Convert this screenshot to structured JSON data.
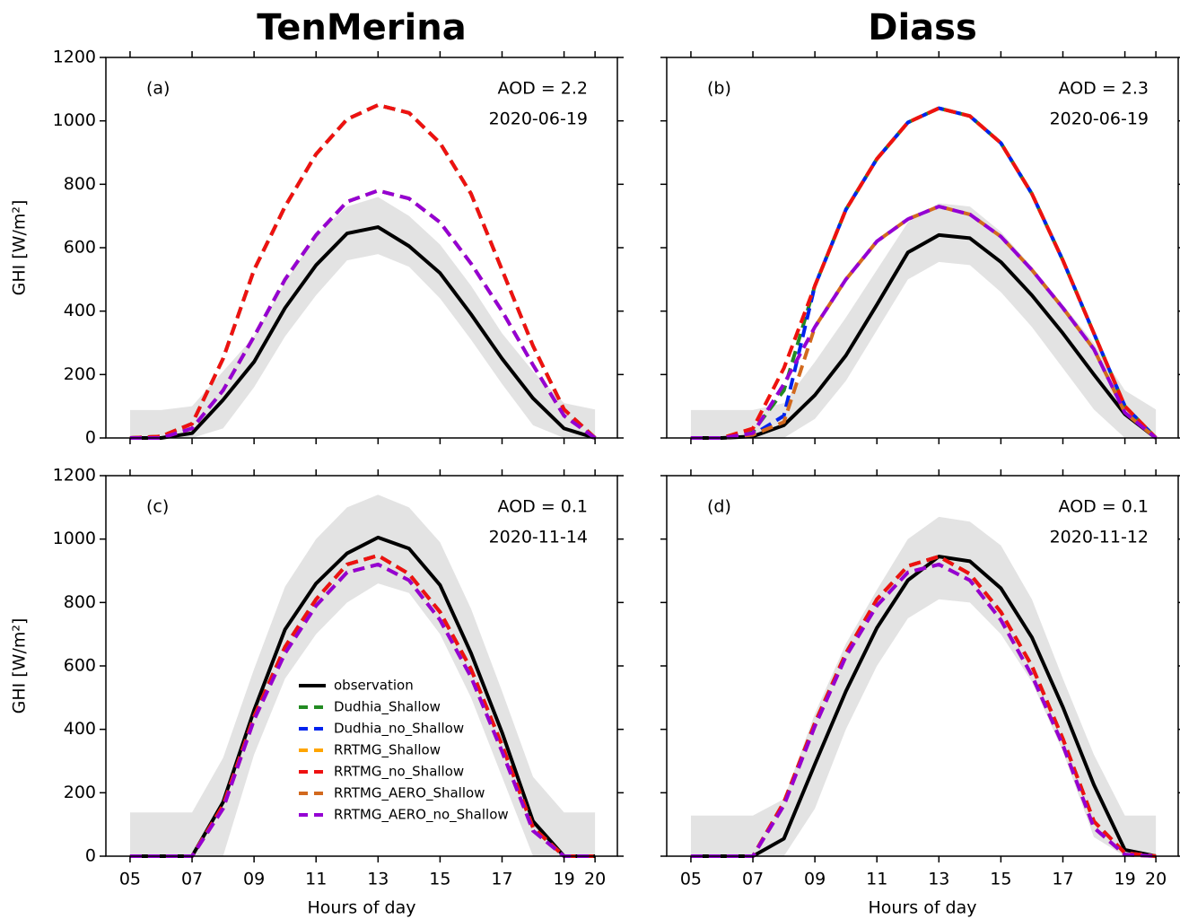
{
  "chart_data": [
    {
      "type": "line",
      "title": "TenMerina",
      "panel_label": "(a)",
      "aod": "AOD = 2.2",
      "date": "2020-06-19",
      "ylabel": "GHI [W/m²]",
      "x": [
        5,
        6,
        7,
        8,
        9,
        10,
        11,
        12,
        13,
        14,
        15,
        16,
        17,
        18,
        19,
        20
      ],
      "xlim": [
        4.22,
        20.72
      ],
      "xticks": [
        5,
        7,
        9,
        11,
        13,
        15,
        17,
        19,
        20
      ],
      "ylim": [
        0,
        1200
      ],
      "yticks": [
        0,
        200,
        400,
        600,
        800,
        1000,
        1200
      ],
      "band": {
        "color": "#e3e3e3",
        "low": [
          0,
          0,
          0,
          30,
          160,
          320,
          450,
          560,
          580,
          540,
          440,
          310,
          170,
          40,
          0,
          0
        ],
        "high": [
          88,
          88,
          100,
          210,
          320,
          490,
          640,
          730,
          760,
          700,
          610,
          480,
          330,
          210,
          110,
          90
        ]
      },
      "series": [
        {
          "color": "#000000",
          "dashed": false,
          "values": [
            0,
            0,
            15,
            120,
            240,
            410,
            545,
            645,
            665,
            605,
            520,
            390,
            250,
            125,
            30,
            0
          ]
        },
        {
          "color": "#228b22",
          "dashed": true,
          "values": [
            0,
            5,
            45,
            250,
            530,
            730,
            895,
            1005,
            1050,
            1025,
            930,
            770,
            530,
            290,
            90,
            0
          ]
        },
        {
          "color": "#0022ee",
          "dashed": true,
          "values": [
            0,
            5,
            45,
            250,
            530,
            730,
            895,
            1005,
            1050,
            1025,
            930,
            770,
            530,
            290,
            90,
            0
          ]
        },
        {
          "color": "#ffa500",
          "dashed": true,
          "values": [
            0,
            5,
            45,
            250,
            530,
            730,
            895,
            1005,
            1050,
            1025,
            930,
            770,
            530,
            290,
            90,
            0
          ]
        },
        {
          "color": "#ee1111",
          "dashed": true,
          "values": [
            0,
            5,
            45,
            250,
            530,
            730,
            895,
            1005,
            1050,
            1025,
            930,
            770,
            530,
            290,
            90,
            0
          ]
        },
        {
          "color": "#d2691e",
          "dashed": true,
          "values": [
            0,
            0,
            30,
            150,
            320,
            500,
            640,
            745,
            780,
            755,
            680,
            550,
            400,
            230,
            70,
            0
          ]
        },
        {
          "color": "#9400d3",
          "dashed": true,
          "values": [
            0,
            0,
            30,
            150,
            320,
            500,
            640,
            745,
            780,
            755,
            680,
            550,
            400,
            230,
            70,
            0
          ]
        }
      ]
    },
    {
      "type": "line",
      "title": "Diass",
      "panel_label": "(b)",
      "aod": "AOD = 2.3",
      "date": "2020-06-19",
      "x": [
        5,
        6,
        7,
        8,
        9,
        10,
        11,
        12,
        13,
        14,
        15,
        16,
        17,
        18,
        19,
        20
      ],
      "xlim": [
        4.22,
        20.72
      ],
      "xticks": [
        5,
        7,
        9,
        11,
        13,
        15,
        17,
        19,
        20
      ],
      "ylim": [
        0,
        1200
      ],
      "yticks": [
        0,
        200,
        400,
        600,
        800,
        1000,
        1200
      ],
      "band": {
        "color": "#e3e3e3",
        "low": [
          0,
          0,
          0,
          0,
          60,
          180,
          340,
          500,
          555,
          545,
          460,
          350,
          220,
          90,
          0,
          0
        ],
        "high": [
          88,
          88,
          88,
          110,
          240,
          380,
          530,
          680,
          740,
          730,
          650,
          540,
          420,
          300,
          150,
          90
        ]
      },
      "series": [
        {
          "color": "#000000",
          "dashed": false,
          "values": [
            0,
            0,
            5,
            40,
            135,
            260,
            420,
            585,
            640,
            630,
            555,
            450,
            330,
            200,
            75,
            0
          ]
        },
        {
          "color": "#228b22",
          "dashed": true,
          "values": [
            0,
            0,
            20,
            150,
            480,
            720,
            880,
            995,
            1040,
            1015,
            930,
            770,
            560,
            330,
            100,
            0
          ]
        },
        {
          "color": "#0022ee",
          "dashed": true,
          "values": [
            0,
            0,
            10,
            70,
            480,
            720,
            880,
            995,
            1040,
            1015,
            930,
            770,
            560,
            330,
            100,
            0
          ]
        },
        {
          "color": "#ffa500",
          "dashed": true,
          "values": [
            0,
            0,
            30,
            220,
            480,
            720,
            880,
            995,
            1040,
            1015,
            930,
            770,
            560,
            330,
            100,
            0
          ]
        },
        {
          "color": "#ee1111",
          "dashed": true,
          "values": [
            0,
            0,
            30,
            220,
            480,
            720,
            880,
            995,
            1040,
            1015,
            930,
            770,
            560,
            330,
            100,
            0
          ]
        },
        {
          "color": "#d2691e",
          "dashed": true,
          "values": [
            0,
            0,
            10,
            50,
            350,
            500,
            620,
            690,
            730,
            705,
            635,
            530,
            410,
            280,
            80,
            0
          ]
        },
        {
          "color": "#9400d3",
          "dashed": true,
          "values": [
            0,
            0,
            15,
            170,
            350,
            500,
            620,
            690,
            730,
            705,
            635,
            530,
            410,
            280,
            80,
            0
          ]
        }
      ]
    },
    {
      "type": "line",
      "panel_label": "(c)",
      "aod": "AOD = 0.1",
      "date": "2020-11-14",
      "ylabel": "GHI [W/m²]",
      "xlabel": "Hours of day",
      "legend": "lower center",
      "x": [
        5,
        6,
        7,
        8,
        9,
        10,
        11,
        12,
        13,
        14,
        15,
        16,
        17,
        18,
        19,
        20
      ],
      "xlim": [
        4.22,
        20.72
      ],
      "xticks": [
        {
          "value": 5,
          "label": "05"
        },
        {
          "value": 7,
          "label": "07"
        },
        {
          "value": 9,
          "label": "09"
        },
        11,
        13,
        15,
        17,
        19,
        20
      ],
      "ylim": [
        0,
        1200
      ],
      "yticks": [
        0,
        200,
        400,
        600,
        800,
        1000,
        1200
      ],
      "band": {
        "color": "#e3e3e3",
        "low": [
          0,
          0,
          0,
          0,
          320,
          560,
          700,
          800,
          860,
          830,
          700,
          500,
          250,
          0,
          0,
          0
        ],
        "high": [
          138,
          138,
          138,
          310,
          590,
          850,
          1000,
          1100,
          1140,
          1100,
          990,
          780,
          520,
          250,
          138,
          138
        ]
      },
      "series": [
        {
          "name": "observation",
          "color": "#000000",
          "dashed": false,
          "values": [
            0,
            0,
            0,
            170,
            460,
            715,
            860,
            955,
            1005,
            970,
            855,
            640,
            390,
            110,
            0,
            0
          ]
        },
        {
          "name": "Dudhia_Shallow",
          "color": "#228b22",
          "dashed": true,
          "values": [
            0,
            0,
            0,
            160,
            440,
            660,
            810,
            920,
            948,
            890,
            770,
            590,
            350,
            90,
            0,
            0
          ]
        },
        {
          "name": "Dudhia_no_Shallow",
          "color": "#0022ee",
          "dashed": true,
          "values": [
            0,
            0,
            0,
            160,
            440,
            660,
            810,
            920,
            948,
            890,
            770,
            590,
            350,
            90,
            0,
            0
          ]
        },
        {
          "name": "RRTMG_Shallow",
          "color": "#ffa500",
          "dashed": true,
          "values": [
            0,
            0,
            0,
            160,
            440,
            660,
            810,
            920,
            948,
            890,
            770,
            590,
            350,
            90,
            0,
            0
          ]
        },
        {
          "name": "RRTMG_no_Shallow",
          "color": "#ee1111",
          "dashed": true,
          "values": [
            0,
            0,
            0,
            160,
            440,
            660,
            810,
            920,
            948,
            890,
            770,
            590,
            350,
            90,
            0,
            0
          ]
        },
        {
          "name": "RRTMG_AERO_Shallow",
          "color": "#d2691e",
          "dashed": true,
          "values": [
            0,
            0,
            0,
            150,
            430,
            640,
            790,
            895,
            920,
            870,
            745,
            565,
            330,
            80,
            0,
            0
          ]
        },
        {
          "name": "RRTMG_AERO_no_Shallow",
          "color": "#9400d3",
          "dashed": true,
          "values": [
            0,
            0,
            0,
            150,
            430,
            640,
            790,
            895,
            920,
            870,
            745,
            565,
            330,
            80,
            0,
            0
          ]
        }
      ]
    },
    {
      "type": "line",
      "panel_label": "(d)",
      "aod": "AOD = 0.1",
      "date": "2020-11-12",
      "xlabel": "Hours of day",
      "x": [
        5,
        6,
        7,
        8,
        9,
        10,
        11,
        12,
        13,
        14,
        15,
        16,
        17,
        18,
        19,
        20
      ],
      "xlim": [
        4.22,
        20.72
      ],
      "xticks": [
        {
          "value": 5,
          "label": "05"
        },
        {
          "value": 7,
          "label": "07"
        },
        {
          "value": 9,
          "label": "09"
        },
        11,
        13,
        15,
        17,
        19,
        20
      ],
      "ylim": [
        0,
        1200
      ],
      "yticks": [
        0,
        200,
        400,
        600,
        800,
        1000,
        1200
      ],
      "band": {
        "color": "#e3e3e3",
        "low": [
          0,
          0,
          0,
          0,
          150,
          400,
          600,
          750,
          810,
          800,
          700,
          550,
          330,
          60,
          0,
          0
        ],
        "high": [
          128,
          128,
          128,
          180,
          450,
          670,
          840,
          1000,
          1070,
          1055,
          980,
          810,
          560,
          320,
          128,
          128
        ]
      },
      "series": [
        {
          "color": "#000000",
          "dashed": false,
          "values": [
            0,
            0,
            0,
            55,
            290,
            520,
            720,
            870,
            945,
            930,
            845,
            690,
            470,
            225,
            20,
            0
          ]
        },
        {
          "color": "#228b22",
          "dashed": true,
          "values": [
            0,
            0,
            0,
            170,
            420,
            640,
            810,
            915,
            945,
            890,
            770,
            600,
            370,
            110,
            10,
            0
          ]
        },
        {
          "color": "#0022ee",
          "dashed": true,
          "values": [
            0,
            0,
            0,
            170,
            420,
            640,
            810,
            915,
            945,
            890,
            770,
            600,
            370,
            110,
            10,
            0
          ]
        },
        {
          "color": "#ffa500",
          "dashed": true,
          "values": [
            0,
            0,
            0,
            170,
            420,
            640,
            810,
            915,
            945,
            890,
            770,
            600,
            370,
            110,
            10,
            0
          ]
        },
        {
          "color": "#ee1111",
          "dashed": true,
          "values": [
            0,
            0,
            0,
            170,
            420,
            640,
            810,
            915,
            945,
            890,
            770,
            600,
            370,
            110,
            10,
            0
          ]
        },
        {
          "color": "#d2691e",
          "dashed": true,
          "values": [
            0,
            0,
            0,
            160,
            410,
            630,
            790,
            895,
            920,
            870,
            745,
            570,
            350,
            90,
            5,
            0
          ]
        },
        {
          "color": "#9400d3",
          "dashed": true,
          "values": [
            0,
            0,
            0,
            160,
            410,
            630,
            790,
            895,
            920,
            870,
            745,
            570,
            350,
            90,
            5,
            0
          ]
        }
      ]
    }
  ]
}
